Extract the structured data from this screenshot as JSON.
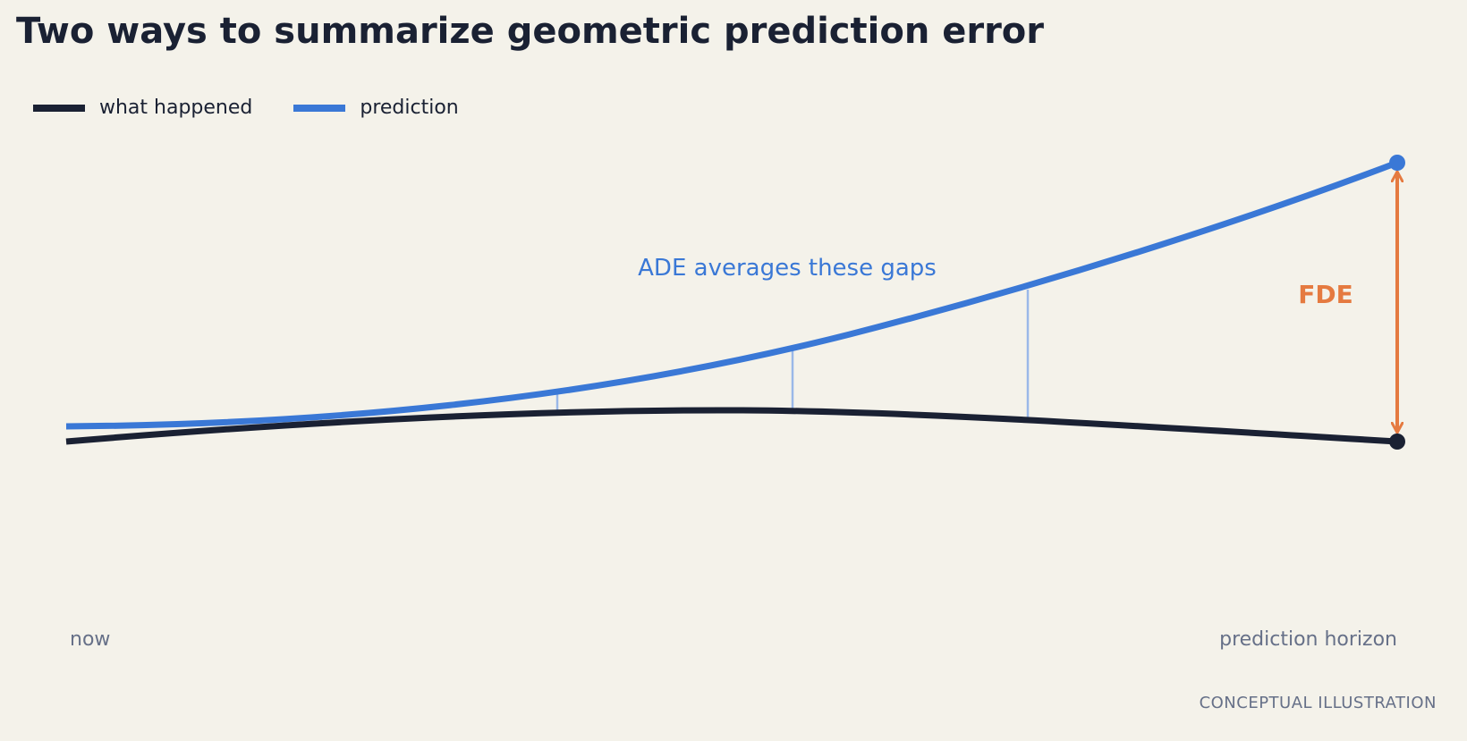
{
  "title": "Two ways to summarize geometric prediction error",
  "legend": {
    "actual_label": "what happened",
    "prediction_label": "prediction"
  },
  "annotations": {
    "ade_label": "ADE averages these gaps",
    "fde_label": "FDE"
  },
  "axis": {
    "start_label": "now",
    "end_label": "prediction horizon"
  },
  "footnote": "CONCEPTUAL ILLUSTRATION",
  "colors": {
    "background": "#f4f2ea",
    "actual": "#1a2133",
    "prediction": "#3a78d6",
    "gap_lines": "#9ab8e8",
    "fde": "#e57a40",
    "muted_text": "#667088"
  }
}
